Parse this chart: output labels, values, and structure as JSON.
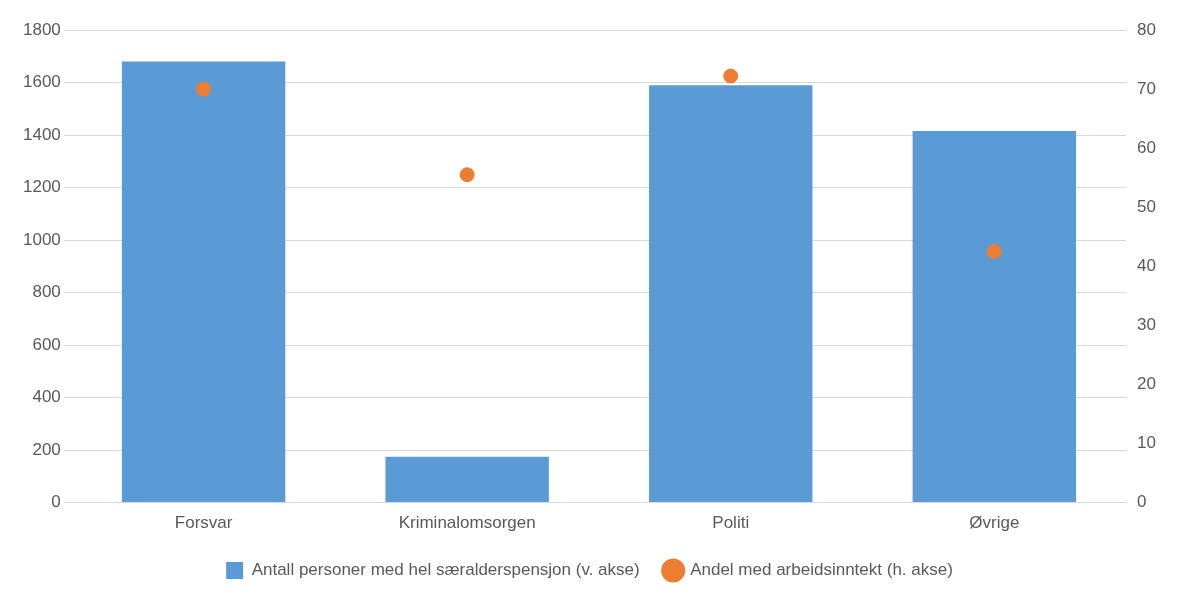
{
  "chart_data": {
    "type": "bar",
    "categories": [
      "Forsvar",
      "Kriminalomsorgen",
      "Politi",
      "Øvrige"
    ],
    "series": [
      {
        "name": "Antall personer med hel særalderspensjon (v. akse)",
        "color": "#5b9bd5",
        "values": [
          1680,
          175,
          1590,
          1415
        ]
      },
      {
        "name": "Andel med arbeidsinntekt (h. akse)",
        "type": "scatter",
        "axis": "y2",
        "color": "#ed7d31",
        "marker": "circle",
        "values": [
          70,
          55.5,
          72.2,
          42.5
        ]
      }
    ],
    "ylim": [
      0,
      1800
    ],
    "yticks": [
      0,
      200,
      400,
      600,
      800,
      1000,
      1200,
      1400,
      1600,
      1800
    ],
    "y2lim": [
      0,
      80
    ],
    "y2ticks": [
      0,
      10,
      20,
      30,
      40,
      50,
      60,
      70,
      80
    ],
    "grid": "y",
    "legend": "bottom"
  }
}
